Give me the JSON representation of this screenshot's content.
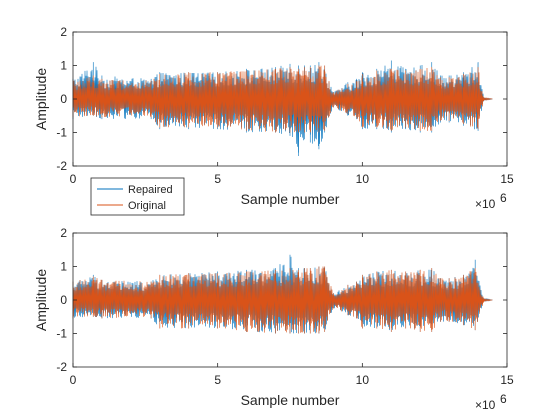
{
  "chart_data": [
    {
      "type": "line",
      "title": "",
      "xlabel": "Sample number",
      "ylabel": "Amplitude",
      "x_exponent_base": "×10",
      "x_exponent_power": "6",
      "xlim": [
        0,
        15000000
      ],
      "ylim": [
        -2,
        2
      ],
      "xticks": [
        0,
        5000000,
        10000000,
        15000000
      ],
      "xtick_labels": [
        "0",
        "5",
        "10",
        "15"
      ],
      "yticks": [
        -2,
        -1,
        0,
        1,
        2
      ],
      "ytick_labels": [
        "-2",
        "-1",
        "0",
        "1",
        "2"
      ],
      "grid": false,
      "legend_position": "below-left",
      "legend_entries": [
        "Repaired",
        "Original"
      ],
      "colors": {
        "Repaired": "#0072BD",
        "Original": "#D95319"
      },
      "series": [
        {
          "name": "Repaired",
          "color": "#0072BD",
          "x": [
            0,
            700000,
            1000000,
            2700000,
            3000000,
            4000000,
            5000000,
            6000000,
            7000000,
            7500000,
            7800000,
            8000000,
            8200000,
            8500000,
            8700000,
            9000000,
            9500000,
            9800000,
            10000000,
            10500000,
            11000000,
            11500000,
            12000000,
            12400000,
            12700000,
            13000000,
            13500000,
            14000000,
            14200000,
            14500000
          ],
          "upper": [
            0.6,
            1.1,
            0.7,
            0.6,
            0.8,
            0.8,
            0.8,
            0.9,
            0.95,
            1.05,
            1.0,
            1.0,
            1.0,
            1.1,
            1.0,
            0.2,
            0.5,
            0.6,
            0.8,
            0.9,
            1.15,
            0.9,
            1.0,
            1.1,
            0.7,
            0.7,
            0.8,
            1.1,
            0.05,
            0.0
          ],
          "lower": [
            -0.6,
            -0.5,
            -0.6,
            -0.6,
            -0.9,
            -0.9,
            -0.9,
            -1.0,
            -1.0,
            -1.1,
            -1.7,
            -1.2,
            -1.3,
            -1.5,
            -1.0,
            -0.25,
            -0.5,
            -0.6,
            -0.9,
            -0.9,
            -1.0,
            -0.9,
            -1.0,
            -1.0,
            -0.7,
            -0.7,
            -0.8,
            -0.95,
            -0.05,
            0.0
          ]
        },
        {
          "name": "Original",
          "color": "#D95319",
          "x": [
            0,
            700000,
            1000000,
            2700000,
            3000000,
            4000000,
            5000000,
            6000000,
            7000000,
            7500000,
            7800000,
            8000000,
            8200000,
            8500000,
            8700000,
            9000000,
            9500000,
            9800000,
            10000000,
            10500000,
            11000000,
            11500000,
            12000000,
            12400000,
            12700000,
            13000000,
            13500000,
            14000000,
            14200000,
            14500000
          ],
          "upper": [
            0.55,
            0.7,
            0.6,
            0.55,
            0.75,
            0.8,
            0.8,
            0.85,
            0.9,
            0.95,
            0.9,
            0.95,
            0.95,
            1.0,
            1.0,
            0.2,
            0.45,
            0.55,
            0.75,
            0.85,
            0.9,
            0.85,
            0.9,
            0.95,
            0.65,
            0.65,
            0.75,
            0.95,
            0.05,
            0.0
          ],
          "lower": [
            -0.55,
            -0.5,
            -0.55,
            -0.55,
            -0.85,
            -0.85,
            -0.85,
            -0.95,
            -1.0,
            -1.0,
            -1.0,
            -1.0,
            -1.0,
            -1.0,
            -0.95,
            -0.25,
            -0.45,
            -0.55,
            -0.85,
            -0.85,
            -0.95,
            -0.85,
            -0.95,
            -0.95,
            -0.65,
            -0.65,
            -0.75,
            -0.9,
            -0.05,
            0.0
          ]
        }
      ]
    },
    {
      "type": "line",
      "title": "",
      "xlabel": "Sample number",
      "ylabel": "Amplitude",
      "x_exponent_base": "×10",
      "x_exponent_power": "6",
      "xlim": [
        0,
        15000000
      ],
      "ylim": [
        -2,
        2
      ],
      "xticks": [
        0,
        5000000,
        10000000,
        15000000
      ],
      "xtick_labels": [
        "0",
        "5",
        "10",
        "15"
      ],
      "yticks": [
        -2,
        -1,
        0,
        1,
        2
      ],
      "ytick_labels": [
        "-2",
        "-1",
        "0",
        "1",
        "2"
      ],
      "grid": false,
      "series": [
        {
          "name": "Repaired",
          "color": "#0072BD",
          "x": [
            0,
            700000,
            1000000,
            2700000,
            3000000,
            4000000,
            5000000,
            6000000,
            7000000,
            7500000,
            7800000,
            8000000,
            8200000,
            8500000,
            8700000,
            9000000,
            9500000,
            9800000,
            10000000,
            10500000,
            11000000,
            11500000,
            12000000,
            12400000,
            12700000,
            13000000,
            13500000,
            13900000,
            14200000,
            14500000
          ],
          "upper": [
            0.55,
            0.75,
            0.6,
            0.55,
            0.75,
            0.8,
            0.85,
            0.9,
            0.95,
            1.35,
            0.95,
            0.95,
            0.95,
            1.0,
            1.0,
            0.2,
            0.45,
            0.55,
            0.75,
            0.85,
            0.9,
            0.85,
            0.9,
            0.95,
            0.65,
            0.65,
            0.75,
            1.2,
            0.05,
            0.0
          ],
          "lower": [
            -0.55,
            -0.5,
            -0.55,
            -0.55,
            -0.85,
            -0.85,
            -0.85,
            -0.95,
            -1.0,
            -1.0,
            -1.0,
            -1.0,
            -1.0,
            -1.0,
            -0.95,
            -0.25,
            -0.45,
            -0.55,
            -0.85,
            -0.85,
            -0.95,
            -0.85,
            -0.95,
            -0.95,
            -0.65,
            -0.65,
            -0.75,
            -0.9,
            -0.05,
            0.0
          ]
        },
        {
          "name": "Original",
          "color": "#D95319",
          "x": [
            0,
            700000,
            1000000,
            2700000,
            3000000,
            4000000,
            5000000,
            6000000,
            7000000,
            7500000,
            7800000,
            8000000,
            8200000,
            8500000,
            8700000,
            9000000,
            9500000,
            9800000,
            10000000,
            10500000,
            11000000,
            11500000,
            12000000,
            12400000,
            12700000,
            13000000,
            13500000,
            13900000,
            14200000,
            14500000
          ],
          "upper": [
            0.55,
            0.7,
            0.6,
            0.55,
            0.75,
            0.8,
            0.8,
            0.85,
            0.9,
            0.95,
            0.9,
            0.95,
            0.95,
            1.0,
            1.0,
            0.2,
            0.45,
            0.55,
            0.75,
            0.85,
            0.9,
            0.85,
            0.9,
            0.95,
            0.65,
            0.65,
            0.75,
            0.95,
            0.05,
            0.0
          ],
          "lower": [
            -0.55,
            -0.5,
            -0.55,
            -0.55,
            -0.85,
            -0.85,
            -0.85,
            -0.95,
            -1.0,
            -1.0,
            -1.0,
            -1.0,
            -1.0,
            -1.0,
            -0.95,
            -0.25,
            -0.45,
            -0.55,
            -0.85,
            -0.85,
            -0.95,
            -0.85,
            -0.95,
            -0.95,
            -0.65,
            -0.65,
            -0.75,
            -0.9,
            -0.05,
            0.0
          ]
        }
      ]
    }
  ]
}
